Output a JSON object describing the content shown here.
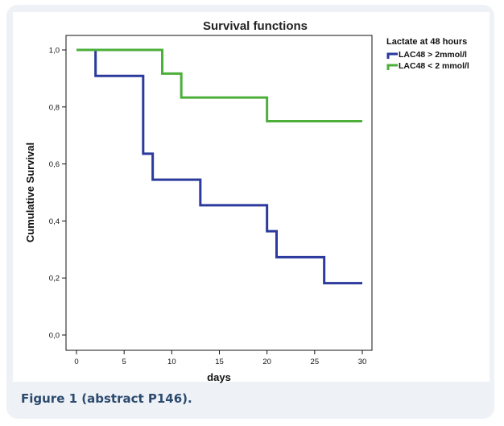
{
  "caption": "Figure 1 (abstract P146).",
  "chart_data": {
    "type": "line",
    "title": "Survival functions",
    "xlabel": "days",
    "ylabel": "Cumulative Survival",
    "xlim": [
      0,
      30
    ],
    "ylim": [
      0,
      1
    ],
    "x_ticks": [
      "0",
      "5",
      "10",
      "15",
      "20",
      "25",
      "30"
    ],
    "y_ticks": [
      "0,0",
      "0,2",
      "0,4",
      "0,6",
      "0,8",
      "1,0"
    ],
    "grid": false,
    "legend_title": "Lactate at 48 hours",
    "legend_position": "right",
    "step": true,
    "series": [
      {
        "name": "LAC48 > 2mmol/l",
        "color": "#2b3a9c",
        "x": [
          0,
          2,
          7,
          8,
          13,
          20,
          21,
          26,
          30
        ],
        "y": [
          1.0,
          0.909,
          0.636,
          0.545,
          0.455,
          0.364,
          0.273,
          0.182,
          0.182
        ]
      },
      {
        "name": "LAC48 < 2 mmol/l",
        "color": "#4caf3a",
        "x": [
          0,
          9,
          11,
          20,
          30
        ],
        "y": [
          1.0,
          0.917,
          0.833,
          0.75,
          0.75
        ]
      }
    ]
  }
}
